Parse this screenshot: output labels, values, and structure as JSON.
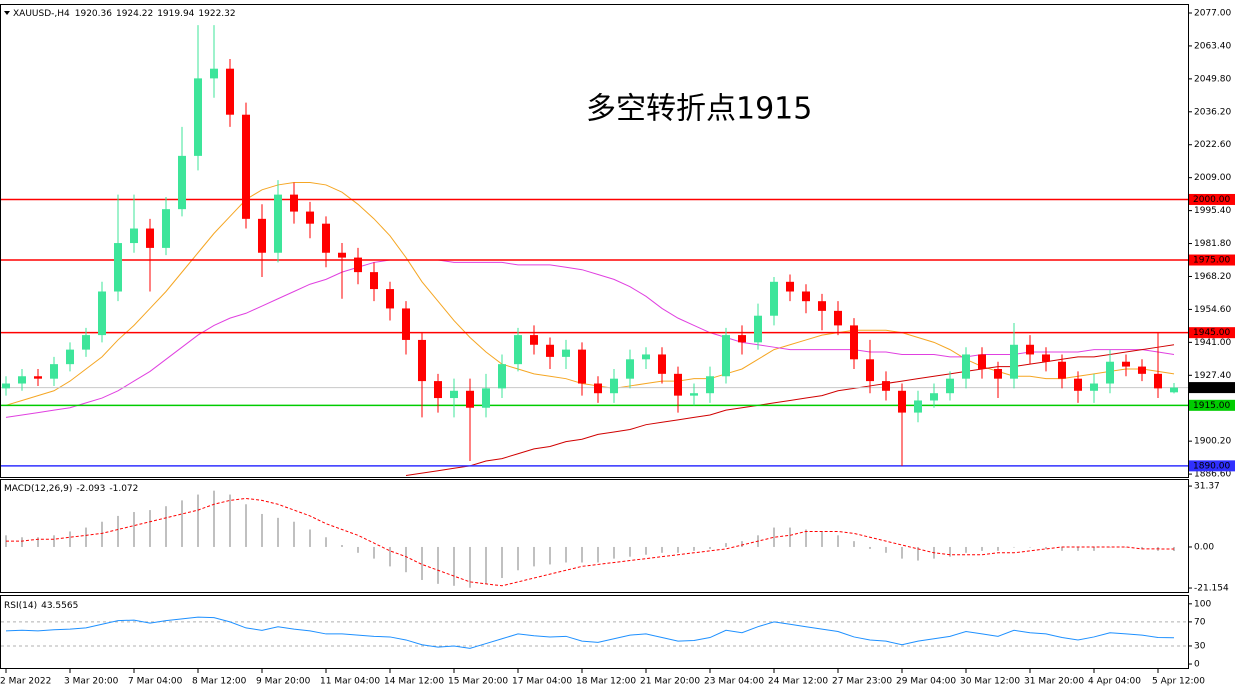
{
  "chart_data": [
    {
      "type": "candlestick",
      "title": "XAUUSD-,H4",
      "annotation": "多空转折点1915",
      "annotation_color": "#ff0000",
      "categories": [
        "2 Mar 2022",
        null,
        null,
        null,
        "3 Mar 20:00",
        null,
        null,
        null,
        "7 Mar 04:00",
        null,
        null,
        null,
        "8 Mar 12:00",
        null,
        null,
        null,
        "9 Mar 20:00",
        null,
        null,
        null,
        "11 Mar 04:00",
        null,
        null,
        null,
        "14 Mar 12:00",
        null,
        null,
        null,
        "15 Mar 20:00",
        null,
        null,
        null,
        "17 Mar 04:00",
        null,
        null,
        null,
        "18 Mar 12:00",
        null,
        null,
        null,
        "21 Mar 20:00",
        null,
        null,
        null,
        "23 Mar 04:00",
        null,
        null,
        null,
        "24 Mar 12:00",
        null,
        null,
        null,
        "27 Mar 23:00",
        null,
        null,
        null,
        "29 Mar 04:00",
        null,
        null,
        null,
        "30 Mar 12:00",
        null,
        null,
        null,
        "31 Mar 20:00",
        null,
        null,
        null,
        "4 Apr 04:00",
        null,
        null,
        null,
        "5 Apr 12:00",
        null
      ],
      "open": [
        1922,
        1924,
        1927,
        1926,
        1932,
        1938,
        1944,
        1962,
        1982,
        1988,
        1980,
        1996,
        2018,
        2050,
        2054,
        2035,
        1992,
        1978,
        2002,
        1995,
        1990,
        1978,
        1976,
        1970,
        1963,
        1955,
        1942,
        1925,
        1918,
        1921,
        1914,
        1922,
        1932,
        1944,
        1940,
        1935,
        1938,
        1924,
        1920,
        1926,
        1934,
        1936,
        1928,
        1919,
        1920,
        1927,
        1944,
        1941,
        1952,
        1966,
        1962,
        1958,
        1954,
        1948,
        1934,
        1925,
        1921,
        1912,
        1917,
        1920,
        1926,
        1936,
        1930,
        1926,
        1940,
        1936,
        1933,
        1926,
        1921,
        1924,
        1933,
        1931,
        1928,
        1920.36
      ],
      "high": [
        1927,
        1930,
        1930,
        1935,
        1941,
        1947,
        1966,
        2002,
        2002,
        1992,
        2001,
        2030,
        2072,
        2072,
        2058,
        2040,
        1998,
        2008,
        2007,
        1999,
        1993,
        1982,
        1980,
        1974,
        1966,
        1958,
        1945,
        1928,
        1926,
        1926,
        1928,
        1936,
        1947,
        1948,
        1943,
        1942,
        1941,
        1927,
        1930,
        1938,
        1939,
        1939,
        1931,
        1924,
        1931,
        1947,
        1948,
        1957,
        1968,
        1969,
        1965,
        1961,
        1958,
        1951,
        1942,
        1929,
        1924,
        1921,
        1924,
        1929,
        1939,
        1939,
        1933,
        1949,
        1944,
        1939,
        1936,
        1929,
        1928,
        1938,
        1936,
        1934,
        1945,
        1924.22
      ],
      "low": [
        1919,
        1921,
        1923,
        1923,
        1929,
        1935,
        1941,
        1958,
        1978,
        1962,
        1977,
        1993,
        2012,
        2042,
        2030,
        1988,
        1968,
        1974,
        1990,
        1984,
        1972,
        1959,
        1965,
        1958,
        1950,
        1936,
        1910,
        1912,
        1910,
        1892,
        1910,
        1918,
        1929,
        1936,
        1930,
        1930,
        1919,
        1916,
        1916,
        1922,
        1930,
        1924,
        1912,
        1915,
        1916,
        1924,
        1936,
        1938,
        1948,
        1958,
        1953,
        1946,
        1944,
        1930,
        1920,
        1917,
        1890,
        1908,
        1914,
        1917,
        1922,
        1926,
        1918,
        1922,
        1932,
        1929,
        1922,
        1916,
        1916,
        1920,
        1927,
        1925,
        1918,
        1919.94
      ],
      "close": [
        1924,
        1927,
        1926,
        1932,
        1938,
        1944,
        1962,
        1982,
        1988,
        1980,
        1996,
        2018,
        2050,
        2054,
        2035,
        1992,
        1978,
        2002,
        1995,
        1990,
        1978,
        1976,
        1970,
        1963,
        1955,
        1942,
        1925,
        1918,
        1921,
        1914,
        1922,
        1932,
        1944,
        1940,
        1935,
        1938,
        1924,
        1920,
        1926,
        1934,
        1936,
        1928,
        1919,
        1920,
        1927,
        1944,
        1941,
        1952,
        1966,
        1962,
        1958,
        1954,
        1948,
        1934,
        1925,
        1921,
        1912,
        1917,
        1920,
        1926,
        1936,
        1930,
        1926,
        1940,
        1936,
        1933,
        1926,
        1921,
        1924,
        1933,
        1931,
        1928,
        1922,
        1922.32
      ],
      "up_color": "#3de59a",
      "down_color": "#ff0000",
      "last_price_color": "#c8c8c8",
      "series": [
        {
          "color": "#f5a623",
          "values": [
            1915,
            1917,
            1919,
            1921,
            1925,
            1930,
            1935,
            1942,
            1948,
            1955,
            1962,
            1970,
            1978,
            1986,
            1993,
            2000,
            2004,
            2006,
            2007,
            2007,
            2006,
            2003,
            1998,
            1992,
            1985,
            1976,
            1966,
            1958,
            1950,
            1943,
            1937,
            1932,
            1930,
            1928,
            1927,
            1926,
            1924,
            1923,
            1922,
            1923,
            1924,
            1925,
            1925,
            1926,
            1926,
            1928,
            1930,
            1934,
            1938,
            1940,
            1942,
            1944,
            1945,
            1946,
            1946,
            1946,
            1945,
            1943,
            1941,
            1938,
            1934,
            1931,
            1929,
            1927,
            1927,
            1926,
            1926,
            1927,
            1928,
            1929,
            1930,
            1930,
            1929,
            1928
          ]
        },
        {
          "color": "#e040e0",
          "values": [
            1910,
            1911,
            1912,
            1913,
            1914,
            1916,
            1918,
            1921,
            1925,
            1929,
            1934,
            1939,
            1944,
            1948,
            1951,
            1953,
            1956,
            1959,
            1962,
            1965,
            1967,
            1970,
            1972,
            1974,
            1975,
            1975,
            1975,
            1975,
            1974,
            1974,
            1974,
            1974,
            1973,
            1973,
            1973,
            1972,
            1971,
            1969,
            1967,
            1964,
            1960,
            1955,
            1951,
            1948,
            1945,
            1943,
            1941,
            1940,
            1939,
            1938,
            1938,
            1938,
            1938,
            1938,
            1937,
            1937,
            1936,
            1936,
            1936,
            1935,
            1935,
            1936,
            1936,
            1936,
            1937,
            1937,
            1937,
            1937,
            1938,
            1938,
            1938,
            1938,
            1937,
            1936
          ]
        },
        {
          "color": "#d00000",
          "values": [
            null,
            null,
            null,
            null,
            null,
            null,
            null,
            null,
            null,
            null,
            null,
            null,
            null,
            null,
            null,
            null,
            null,
            null,
            null,
            null,
            null,
            null,
            null,
            null,
            null,
            1886,
            1887,
            1888,
            1889,
            1890,
            1892,
            1893,
            1895,
            1897,
            1898,
            1900,
            1901,
            1903,
            1904,
            1905,
            1907,
            1908,
            1909,
            1910,
            1911,
            1913,
            1914,
            1915,
            1916,
            1917,
            1918,
            1919,
            1921,
            1922,
            1923,
            1924,
            1925,
            1926,
            1927,
            1928,
            1929,
            1930,
            1931,
            1931,
            1932,
            1933,
            1934,
            1935,
            1935,
            1936,
            1937,
            1938,
            1939,
            1940
          ]
        }
      ],
      "levels": [
        {
          "value": 2000,
          "label": "2000.00",
          "color": "#ff0000"
        },
        {
          "value": 1975,
          "label": "1975.00",
          "color": "#ff0000"
        },
        {
          "value": 1945,
          "label": "1945.00",
          "color": "#ff0000"
        },
        {
          "value": 1915,
          "label": "1915.00",
          "color": "#00cc00"
        },
        {
          "value": 1890,
          "label": "1890.00",
          "color": "#3030ff"
        }
      ],
      "ylim": [
        1885.4,
        2080.3
      ],
      "yticks": [
        {
          "value": 2077,
          "label": "2077.00"
        },
        {
          "value": 2063.4,
          "label": "2063.40"
        },
        {
          "value": 2049.8,
          "label": "2049.80"
        },
        {
          "value": 2036.2,
          "label": "2036.20"
        },
        {
          "value": 2022.6,
          "label": "2022.60"
        },
        {
          "value": 2009,
          "label": "2009.00"
        },
        {
          "value": 1995.4,
          "label": "1995.40"
        },
        {
          "value": 1981.8,
          "label": "1981.80"
        },
        {
          "value": 1968.2,
          "label": "1968.20"
        },
        {
          "value": 1954.6,
          "label": "1954.60"
        },
        {
          "value": 1941,
          "label": "1941.00"
        },
        {
          "value": 1927.4,
          "label": "1927.40"
        },
        {
          "value": 1900.2,
          "label": "1900.20"
        },
        {
          "value": 1886.6,
          "label": "1886.60"
        }
      ]
    },
    {
      "type": "bar",
      "title": "MACD(12,26,9)",
      "color": "#c0c0c0",
      "values": [
        6,
        5,
        5,
        6,
        8,
        10,
        13,
        16,
        18,
        19,
        21,
        24,
        27,
        29,
        27,
        22,
        17,
        15,
        13,
        9,
        5,
        1,
        -3,
        -6,
        -10,
        -13,
        -17,
        -19,
        -20,
        -21,
        -19,
        -16,
        -12,
        -10,
        -9,
        -8,
        -8,
        -8,
        -6,
        -5,
        -4,
        -3,
        -3,
        -2,
        -1,
        2,
        3,
        6,
        10,
        10,
        9,
        8,
        6,
        3,
        -1,
        -3,
        -6,
        -7,
        -6,
        -5,
        -3,
        -2,
        -2,
        0,
        0,
        -1,
        -2,
        -2,
        -2,
        0,
        0,
        -1,
        -2,
        -2.093
      ],
      "series": [
        {
          "color": "#ff0000",
          "dashed": true,
          "values": [
            3,
            3,
            4,
            4,
            5,
            6,
            7,
            9,
            11,
            13,
            15,
            17,
            19,
            22,
            24,
            25,
            24,
            22,
            19,
            16,
            12,
            9,
            6,
            2,
            -2,
            -5,
            -9,
            -12,
            -15,
            -18,
            -19,
            -20,
            -18,
            -16,
            -14,
            -12,
            -10,
            -9,
            -8,
            -7,
            -6,
            -5,
            -4,
            -3,
            -2,
            -1,
            1,
            3,
            5,
            6,
            8,
            8,
            8,
            7,
            5,
            3,
            1,
            -1,
            -3,
            -4,
            -4,
            -4,
            -3,
            -3,
            -2,
            -1,
            0,
            0,
            0,
            0,
            0,
            -1,
            -1,
            -1.072
          ]
        }
      ],
      "ylim": [
        -23.2,
        34.5
      ],
      "yticks": [
        31.37,
        {
          "value": 0,
          "label": "0.00"
        },
        -21.154
      ]
    },
    {
      "type": "line",
      "title": "RSI(14)",
      "color": "#1e90ff",
      "dashed_inner_ticks": true,
      "values": [
        55,
        56,
        55,
        57,
        58,
        60,
        66,
        72,
        73,
        68,
        72,
        75,
        78,
        77,
        70,
        60,
        56,
        62,
        58,
        55,
        50,
        50,
        48,
        46,
        45,
        40,
        32,
        28,
        30,
        26,
        34,
        42,
        50,
        47,
        45,
        46,
        38,
        36,
        42,
        48,
        50,
        44,
        38,
        39,
        44,
        56,
        52,
        62,
        70,
        66,
        62,
        58,
        54,
        45,
        40,
        38,
        32,
        38,
        42,
        46,
        54,
        50,
        46,
        56,
        52,
        50,
        44,
        40,
        45,
        52,
        50,
        48,
        44,
        43.5565
      ],
      "ylim": [
        -6.6,
        113
      ],
      "yticks": [
        100,
        70,
        30,
        0
      ]
    }
  ]
}
